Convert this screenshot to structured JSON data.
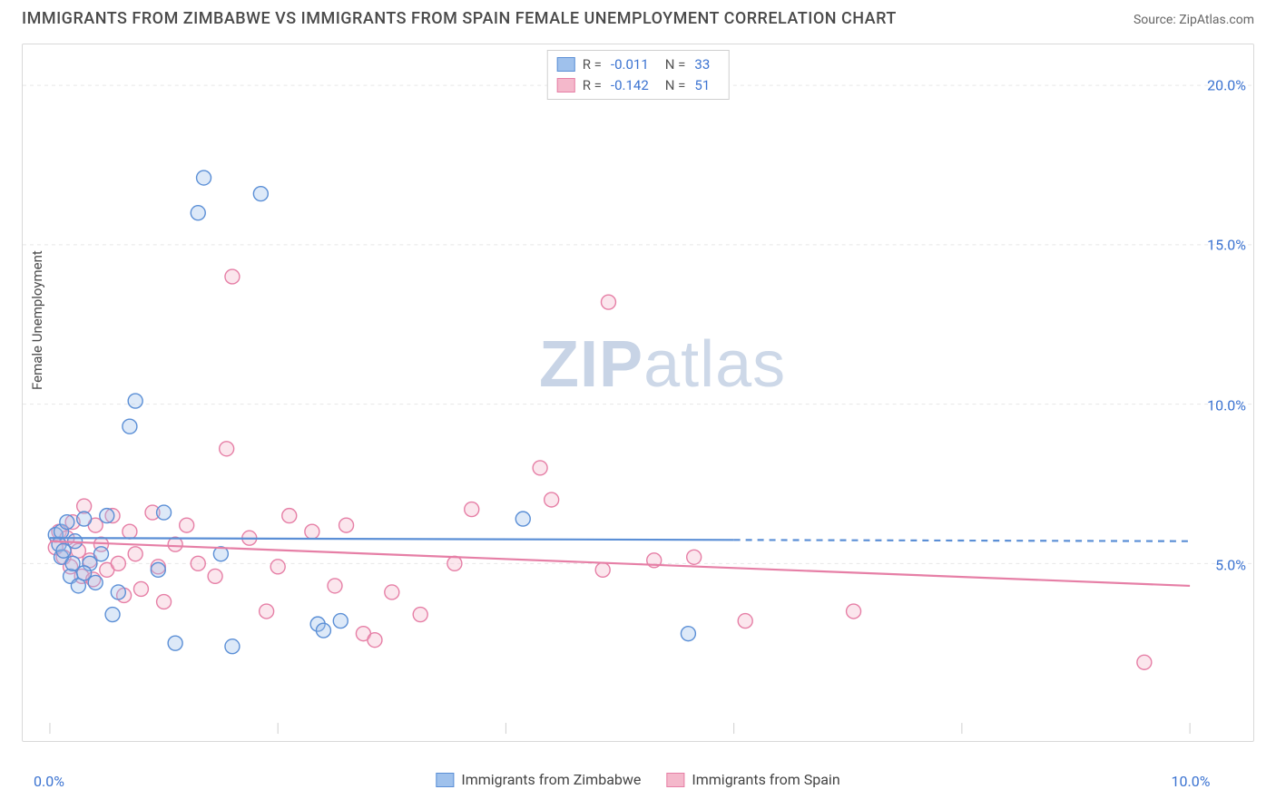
{
  "header": {
    "title": "IMMIGRANTS FROM ZIMBABWE VS IMMIGRANTS FROM SPAIN FEMALE UNEMPLOYMENT CORRELATION CHART",
    "source": "Source: ZipAtlas.com"
  },
  "watermark": {
    "part1": "ZIP",
    "part2": "atlas"
  },
  "chart": {
    "type": "scatter",
    "background_color": "#ffffff",
    "border_color": "#d9d9d9",
    "grid_color": "#e8e8e8",
    "ylabel": "Female Unemployment",
    "xlim": [
      0.0,
      10.0
    ],
    "ylim": [
      0.0,
      21.0
    ],
    "x_ticks": [
      0.0,
      10.0
    ],
    "x_tick_labels": [
      "0.0%",
      "10.0%"
    ],
    "y_ticks": [
      5.0,
      10.0,
      15.0,
      20.0
    ],
    "y_tick_labels": [
      "5.0%",
      "10.0%",
      "15.0%",
      "20.0%"
    ],
    "tick_label_color": "#3b73d1",
    "tick_label_fontsize": 16,
    "marker_radius": 8,
    "marker_fill_opacity": 0.35,
    "marker_stroke_width": 1.4,
    "series_a": {
      "name": "Immigrants from Zimbabwe",
      "color_fill": "#9fc1ec",
      "color_stroke": "#5b8fd6",
      "R": "-0.011",
      "N": "33",
      "trend": {
        "y_at_x0": 5.8,
        "y_at_x10": 5.7,
        "solid_until_x": 6.0,
        "stroke_width": 2.2
      },
      "points": [
        [
          0.05,
          5.9
        ],
        [
          0.08,
          5.6
        ],
        [
          0.1,
          6.0
        ],
        [
          0.1,
          5.2
        ],
        [
          0.15,
          6.3
        ],
        [
          0.18,
          4.6
        ],
        [
          0.2,
          5.0
        ],
        [
          0.22,
          5.7
        ],
        [
          0.25,
          4.3
        ],
        [
          0.3,
          6.4
        ],
        [
          0.35,
          5.0
        ],
        [
          0.4,
          4.4
        ],
        [
          0.45,
          5.3
        ],
        [
          0.5,
          6.5
        ],
        [
          0.55,
          3.4
        ],
        [
          0.6,
          4.1
        ],
        [
          0.7,
          9.3
        ],
        [
          0.75,
          10.1
        ],
        [
          0.95,
          4.8
        ],
        [
          1.0,
          6.6
        ],
        [
          1.1,
          2.5
        ],
        [
          1.3,
          16.0
        ],
        [
          1.35,
          17.1
        ],
        [
          1.5,
          5.3
        ],
        [
          1.6,
          2.4
        ],
        [
          1.85,
          16.6
        ],
        [
          2.35,
          3.1
        ],
        [
          2.4,
          2.9
        ],
        [
          2.55,
          3.2
        ],
        [
          4.15,
          6.4
        ],
        [
          5.6,
          2.8
        ],
        [
          0.12,
          5.4
        ],
        [
          0.3,
          4.7
        ]
      ]
    },
    "series_b": {
      "name": "Immigrants from Spain",
      "color_fill": "#f4b8cb",
      "color_stroke": "#e67fa6",
      "R": "-0.142",
      "N": "51",
      "trend": {
        "y_at_x0": 5.7,
        "y_at_x10": 4.3,
        "solid_until_x": 10.0,
        "stroke_width": 2.2
      },
      "points": [
        [
          0.05,
          5.5
        ],
        [
          0.08,
          6.0
        ],
        [
          0.12,
          5.2
        ],
        [
          0.15,
          5.8
        ],
        [
          0.18,
          4.9
        ],
        [
          0.2,
          6.3
        ],
        [
          0.25,
          5.4
        ],
        [
          0.28,
          4.6
        ],
        [
          0.3,
          6.8
        ],
        [
          0.35,
          5.1
        ],
        [
          0.38,
          4.5
        ],
        [
          0.4,
          6.2
        ],
        [
          0.45,
          5.6
        ],
        [
          0.5,
          4.8
        ],
        [
          0.55,
          6.5
        ],
        [
          0.6,
          5.0
        ],
        [
          0.65,
          4.0
        ],
        [
          0.7,
          6.0
        ],
        [
          0.75,
          5.3
        ],
        [
          0.8,
          4.2
        ],
        [
          0.9,
          6.6
        ],
        [
          0.95,
          4.9
        ],
        [
          1.0,
          3.8
        ],
        [
          1.1,
          5.6
        ],
        [
          1.2,
          6.2
        ],
        [
          1.3,
          5.0
        ],
        [
          1.45,
          4.6
        ],
        [
          1.55,
          8.6
        ],
        [
          1.6,
          14.0
        ],
        [
          1.75,
          5.8
        ],
        [
          1.9,
          3.5
        ],
        [
          2.0,
          4.9
        ],
        [
          2.1,
          6.5
        ],
        [
          2.3,
          6.0
        ],
        [
          2.5,
          4.3
        ],
        [
          2.6,
          6.2
        ],
        [
          2.75,
          2.8
        ],
        [
          2.85,
          2.6
        ],
        [
          3.0,
          4.1
        ],
        [
          3.25,
          3.4
        ],
        [
          3.55,
          5.0
        ],
        [
          3.7,
          6.7
        ],
        [
          4.3,
          8.0
        ],
        [
          4.4,
          7.0
        ],
        [
          4.85,
          4.8
        ],
        [
          4.9,
          13.2
        ],
        [
          5.3,
          5.1
        ],
        [
          5.65,
          5.2
        ],
        [
          7.05,
          3.5
        ],
        [
          9.6,
          1.9
        ],
        [
          6.1,
          3.2
        ]
      ]
    },
    "legend_top": {
      "border_color": "#cfcfcf",
      "rows": [
        {
          "swatch": "a",
          "R_label": "R =",
          "N_label": "N ="
        },
        {
          "swatch": "b",
          "R_label": "R =",
          "N_label": "N ="
        }
      ]
    },
    "legend_bottom": {
      "items": [
        {
          "swatch": "a",
          "label_key": "series_a"
        },
        {
          "swatch": "b",
          "label_key": "series_b"
        }
      ]
    }
  }
}
